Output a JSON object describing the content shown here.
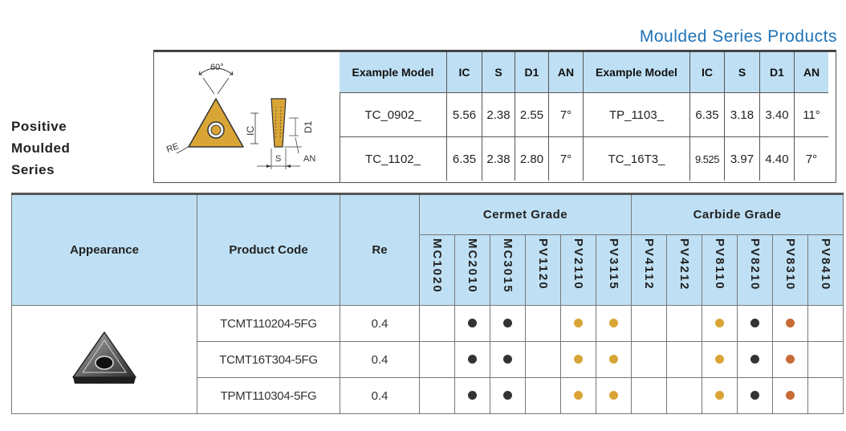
{
  "title": "Moulded Series Products",
  "side_label": [
    "Positive",
    "Moulded",
    "Series"
  ],
  "diagram": {
    "angle": "60°",
    "re": "RE",
    "ic": "IC",
    "d1": "D1",
    "s": "S",
    "an": "AN"
  },
  "example_table": {
    "headers": [
      "Example Model",
      "IC",
      "S",
      "D1",
      "AN",
      "Example Model",
      "IC",
      "S",
      "D1",
      "AN"
    ],
    "rows": [
      [
        "TC_0902_",
        "5.56",
        "2.38",
        "2.55",
        "7°",
        "TP_1103_",
        "6.35",
        "3.18",
        "3.40",
        "11°"
      ],
      [
        "TC_1102_",
        "6.35",
        "2.38",
        "2.80",
        "7°",
        "TC_16T3_",
        "9.525",
        "3.97",
        "4.40",
        "7°"
      ]
    ]
  },
  "product_table": {
    "col_appearance": "Appearance",
    "col_code": "Product Code",
    "col_re": "Re",
    "cermet_label": "Cermet Grade",
    "carbide_label": "Carbide Grade",
    "cermet_grades": [
      "MC1020",
      "MC2010",
      "MC3015",
      "PV1120",
      "PV2110",
      "PV3115"
    ],
    "carbide_grades": [
      "PV4112",
      "PV4212",
      "PV8110",
      "PV8210",
      "PV8310",
      "PV8410"
    ],
    "rows": [
      {
        "code": "TCMT110204-5FG",
        "re": "0.4",
        "dots": [
          "",
          "black",
          "black",
          "",
          "gold",
          "gold",
          "",
          "",
          "gold",
          "black",
          "copper",
          ""
        ]
      },
      {
        "code": "TCMT16T304-5FG",
        "re": "0.4",
        "dots": [
          "",
          "black",
          "black",
          "",
          "gold",
          "gold",
          "",
          "",
          "gold",
          "black",
          "copper",
          ""
        ]
      },
      {
        "code": "TPMT110304-5FG",
        "re": "0.4",
        "dots": [
          "",
          "black",
          "black",
          "",
          "gold",
          "gold",
          "",
          "",
          "gold",
          "black",
          "copper",
          ""
        ]
      }
    ]
  },
  "colors": {
    "black": "#333333",
    "gold": "#d9a536",
    "copper": "#c86a35",
    "header_bg": "#bfe0f4",
    "title": "#1f73b7"
  }
}
